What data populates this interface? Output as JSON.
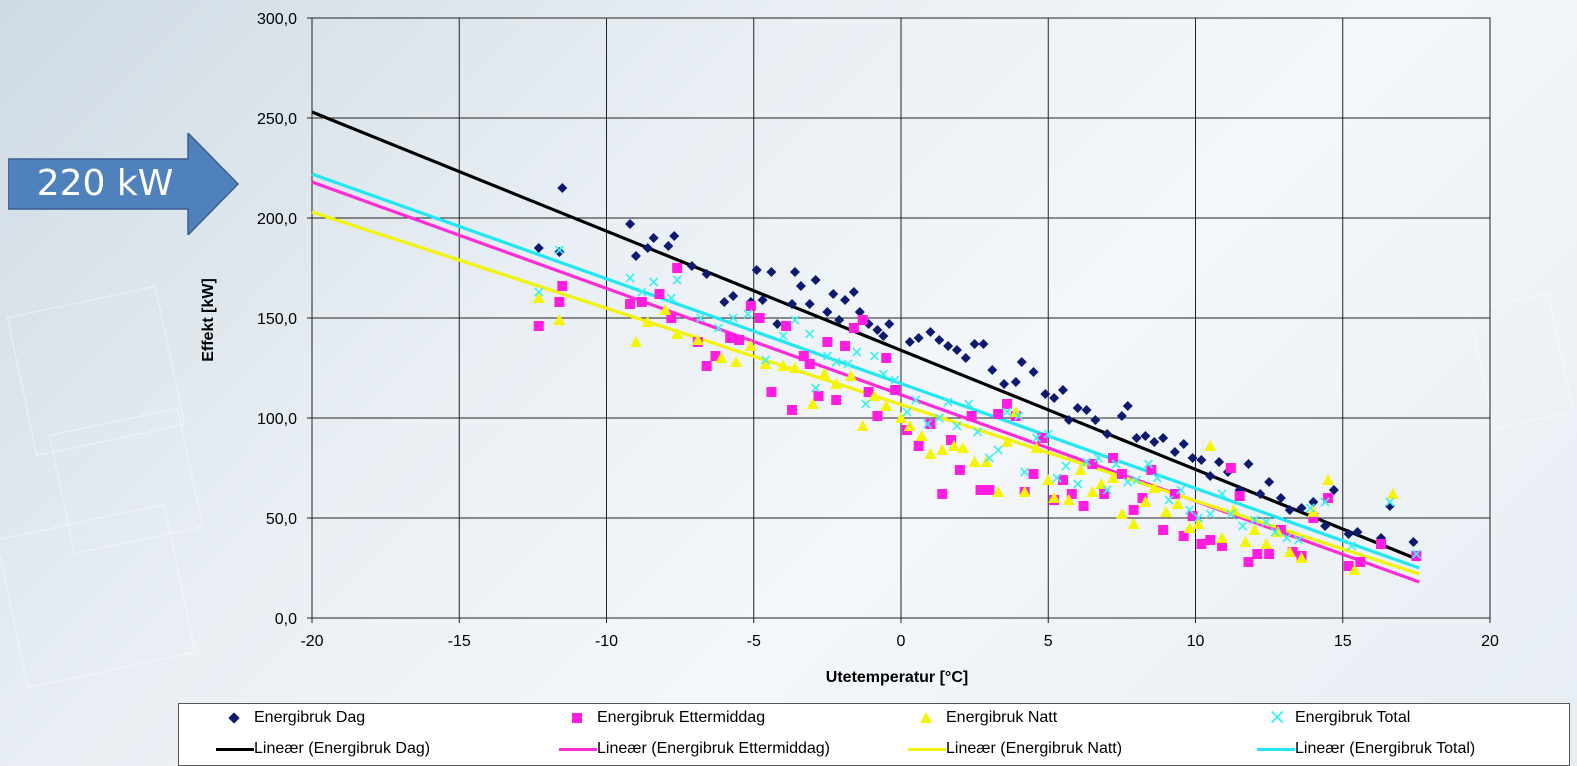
{
  "callout": {
    "text": "220 kW",
    "color": "#4f81bd"
  },
  "chart_data": {
    "type": "scatter",
    "title": "",
    "xlabel": "Utetemperatur [°C]",
    "ylabel": "Effekt [kW]",
    "xlim": [
      -20,
      20
    ],
    "ylim": [
      0,
      300
    ],
    "x_ticks": [
      "-20",
      "-15",
      "-10",
      "-5",
      "0",
      "5",
      "10",
      "15",
      "20"
    ],
    "y_ticks": [
      "0,0",
      "50,0",
      "100,0",
      "150,0",
      "200,0",
      "250,0",
      "300,0"
    ],
    "grid": true,
    "legend_position": "bottom",
    "series": [
      {
        "name": "Energibruk Dag",
        "marker": "diamond",
        "color": "#0d1a6e",
        "points": [
          [
            -12.3,
            185
          ],
          [
            -11.6,
            183
          ],
          [
            -11.5,
            215
          ],
          [
            -9.2,
            197
          ],
          [
            -9,
            181
          ],
          [
            -8.6,
            185
          ],
          [
            -8.4,
            190
          ],
          [
            -7.9,
            186
          ],
          [
            -7.7,
            191
          ],
          [
            -7.1,
            176
          ],
          [
            -6.6,
            172
          ],
          [
            -6,
            158
          ],
          [
            -5.7,
            161
          ],
          [
            -5.1,
            158
          ],
          [
            -4.9,
            174
          ],
          [
            -4.7,
            159
          ],
          [
            -4.4,
            173
          ],
          [
            -4.2,
            147
          ],
          [
            -3.7,
            157
          ],
          [
            -3.6,
            173
          ],
          [
            -3.4,
            166
          ],
          [
            -3.1,
            157
          ],
          [
            -2.9,
            169
          ],
          [
            -2.5,
            153
          ],
          [
            -2.3,
            162
          ],
          [
            -2.1,
            149
          ],
          [
            -1.9,
            159
          ],
          [
            -1.6,
            163
          ],
          [
            -1.4,
            153
          ],
          [
            -1.1,
            147
          ],
          [
            -0.8,
            144
          ],
          [
            -0.6,
            141
          ],
          [
            -0.4,
            147
          ],
          [
            0.3,
            138
          ],
          [
            0.6,
            140
          ],
          [
            1,
            143
          ],
          [
            1.3,
            139
          ],
          [
            1.6,
            136
          ],
          [
            1.9,
            134
          ],
          [
            2.2,
            130
          ],
          [
            2.5,
            137
          ],
          [
            2.8,
            137
          ],
          [
            3.1,
            124
          ],
          [
            3.5,
            117
          ],
          [
            3.9,
            118
          ],
          [
            4.1,
            128
          ],
          [
            4.5,
            123
          ],
          [
            4.9,
            112
          ],
          [
            5.2,
            110
          ],
          [
            5.5,
            114
          ],
          [
            5.7,
            99
          ],
          [
            6,
            105
          ],
          [
            6.3,
            104
          ],
          [
            6.6,
            99
          ],
          [
            7,
            92
          ],
          [
            7.5,
            101
          ],
          [
            7.7,
            106
          ],
          [
            8,
            90
          ],
          [
            8.3,
            91
          ],
          [
            8.6,
            88
          ],
          [
            8.9,
            90
          ],
          [
            9.3,
            83
          ],
          [
            9.6,
            87
          ],
          [
            9.9,
            80
          ],
          [
            10.2,
            79
          ],
          [
            10.5,
            71
          ],
          [
            10.8,
            78
          ],
          [
            11.1,
            73
          ],
          [
            11.5,
            64
          ],
          [
            11.8,
            77
          ],
          [
            12.2,
            62
          ],
          [
            12.5,
            68
          ],
          [
            12.9,
            60
          ],
          [
            13.2,
            54
          ],
          [
            13.6,
            55
          ],
          [
            14,
            58
          ],
          [
            14.4,
            46
          ],
          [
            14.7,
            64
          ],
          [
            15.2,
            42
          ],
          [
            15.5,
            43
          ],
          [
            16.3,
            40
          ],
          [
            16.6,
            56
          ],
          [
            17.4,
            38
          ]
        ]
      },
      {
        "name": "Energibruk Ettermiddag",
        "marker": "square",
        "color": "#ff1ee0",
        "points": [
          [
            -12.3,
            146
          ],
          [
            -11.6,
            158
          ],
          [
            -11.5,
            166
          ],
          [
            -9.2,
            157
          ],
          [
            -8.8,
            158
          ],
          [
            -8.2,
            162
          ],
          [
            -7.8,
            150
          ],
          [
            -7.6,
            175
          ],
          [
            -6.9,
            138
          ],
          [
            -6.6,
            126
          ],
          [
            -6.3,
            131
          ],
          [
            -5.8,
            140
          ],
          [
            -5.5,
            139
          ],
          [
            -5.1,
            156
          ],
          [
            -4.8,
            150
          ],
          [
            -4.4,
            113
          ],
          [
            -3.9,
            146
          ],
          [
            -3.7,
            104
          ],
          [
            -3.3,
            131
          ],
          [
            -3.1,
            127
          ],
          [
            -2.8,
            111
          ],
          [
            -2.5,
            138
          ],
          [
            -2.2,
            109
          ],
          [
            -1.9,
            136
          ],
          [
            -1.6,
            145
          ],
          [
            -1.3,
            149
          ],
          [
            -1.1,
            113
          ],
          [
            -0.8,
            101
          ],
          [
            -0.5,
            130
          ],
          [
            -0.2,
            114
          ],
          [
            0.2,
            94
          ],
          [
            0.6,
            86
          ],
          [
            1,
            97
          ],
          [
            1.4,
            62
          ],
          [
            1.7,
            89
          ],
          [
            2,
            74
          ],
          [
            2.4,
            101
          ],
          [
            2.7,
            64
          ],
          [
            3,
            64
          ],
          [
            3.3,
            102
          ],
          [
            3.6,
            107
          ],
          [
            3.9,
            101
          ],
          [
            4.2,
            63
          ],
          [
            4.5,
            72
          ],
          [
            4.8,
            90
          ],
          [
            5.2,
            59
          ],
          [
            5.5,
            69
          ],
          [
            5.8,
            62
          ],
          [
            6.2,
            56
          ],
          [
            6.5,
            77
          ],
          [
            6.9,
            62
          ],
          [
            7.2,
            80
          ],
          [
            7.5,
            72
          ],
          [
            7.9,
            54
          ],
          [
            8.2,
            60
          ],
          [
            8.5,
            74
          ],
          [
            8.9,
            44
          ],
          [
            9.3,
            62
          ],
          [
            9.6,
            41
          ],
          [
            9.9,
            51
          ],
          [
            10.2,
            37
          ],
          [
            10.5,
            39
          ],
          [
            10.9,
            36
          ],
          [
            11.2,
            75
          ],
          [
            11.5,
            61
          ],
          [
            11.8,
            28
          ],
          [
            12.1,
            32
          ],
          [
            12.5,
            32
          ],
          [
            12.9,
            44
          ],
          [
            13.3,
            33
          ],
          [
            13.6,
            31
          ],
          [
            14,
            50
          ],
          [
            14.5,
            60
          ],
          [
            15.2,
            26
          ],
          [
            15.6,
            28
          ],
          [
            16.3,
            37
          ],
          [
            17.5,
            31
          ]
        ]
      },
      {
        "name": "Energibruk Natt",
        "marker": "triangle",
        "color": "#f5f500",
        "points": [
          [
            -12.3,
            160
          ],
          [
            -11.6,
            149
          ],
          [
            -9,
            138
          ],
          [
            -8.6,
            148
          ],
          [
            -8,
            154
          ],
          [
            -7.6,
            142
          ],
          [
            -6.9,
            139
          ],
          [
            -6.1,
            130
          ],
          [
            -5.6,
            128
          ],
          [
            -5.1,
            136
          ],
          [
            -4.6,
            127
          ],
          [
            -4,
            126
          ],
          [
            -3.6,
            125
          ],
          [
            -3,
            107
          ],
          [
            -2.6,
            122
          ],
          [
            -2.2,
            117
          ],
          [
            -1.7,
            121
          ],
          [
            -1.3,
            96
          ],
          [
            -0.9,
            111
          ],
          [
            -0.5,
            106
          ],
          [
            0,
            100
          ],
          [
            0.3,
            96
          ],
          [
            0.7,
            91
          ],
          [
            1,
            82
          ],
          [
            1.4,
            84
          ],
          [
            1.8,
            86
          ],
          [
            2.1,
            85
          ],
          [
            2.5,
            78
          ],
          [
            2.9,
            78
          ],
          [
            3.3,
            63
          ],
          [
            3.6,
            88
          ],
          [
            3.9,
            103
          ],
          [
            4.2,
            63
          ],
          [
            4.6,
            85
          ],
          [
            5,
            69
          ],
          [
            5.2,
            60
          ],
          [
            5.7,
            59
          ],
          [
            6.1,
            74
          ],
          [
            6.5,
            63
          ],
          [
            6.8,
            67
          ],
          [
            7.2,
            70
          ],
          [
            7.5,
            52
          ],
          [
            7.9,
            47
          ],
          [
            8.3,
            58
          ],
          [
            8.6,
            65
          ],
          [
            9,
            53
          ],
          [
            9.4,
            57
          ],
          [
            9.8,
            45
          ],
          [
            10.1,
            47
          ],
          [
            10.5,
            86
          ],
          [
            10.9,
            40
          ],
          [
            11.3,
            54
          ],
          [
            11.7,
            38
          ],
          [
            12,
            44
          ],
          [
            12.4,
            37
          ],
          [
            12.8,
            43
          ],
          [
            13.2,
            33
          ],
          [
            13.6,
            30
          ],
          [
            14,
            53
          ],
          [
            14.5,
            69
          ],
          [
            15.4,
            24
          ],
          [
            16.7,
            62
          ]
        ]
      },
      {
        "name": "Energibruk Total",
        "marker": "x",
        "color": "#3ff0f0",
        "points": [
          [
            -12.3,
            163
          ],
          [
            -11.6,
            184
          ],
          [
            -9.2,
            170
          ],
          [
            -8.8,
            163
          ],
          [
            -8.4,
            168
          ],
          [
            -7.8,
            160
          ],
          [
            -7.6,
            169
          ],
          [
            -6.8,
            150
          ],
          [
            -6.2,
            145
          ],
          [
            -5.7,
            150
          ],
          [
            -5.2,
            152
          ],
          [
            -4.6,
            129
          ],
          [
            -4,
            141
          ],
          [
            -3.6,
            149
          ],
          [
            -3.1,
            142
          ],
          [
            -2.9,
            115
          ],
          [
            -2.5,
            131
          ],
          [
            -2.2,
            128
          ],
          [
            -1.8,
            127
          ],
          [
            -1.5,
            133
          ],
          [
            -1.2,
            107
          ],
          [
            -0.9,
            131
          ],
          [
            -0.6,
            122
          ],
          [
            -0.2,
            119
          ],
          [
            0.2,
            103
          ],
          [
            0.5,
            109
          ],
          [
            0.9,
            97
          ],
          [
            1.3,
            100
          ],
          [
            1.6,
            108
          ],
          [
            1.9,
            96
          ],
          [
            2.3,
            107
          ],
          [
            2.6,
            93
          ],
          [
            3,
            80
          ],
          [
            3.3,
            84
          ],
          [
            3.6,
            103
          ],
          [
            4,
            101
          ],
          [
            4.2,
            73
          ],
          [
            4.6,
            90
          ],
          [
            5,
            92
          ],
          [
            5.3,
            70
          ],
          [
            5.6,
            76
          ],
          [
            6,
            67
          ],
          [
            6.3,
            78
          ],
          [
            6.7,
            80
          ],
          [
            7,
            64
          ],
          [
            7.3,
            77
          ],
          [
            7.7,
            68
          ],
          [
            8,
            69
          ],
          [
            8.4,
            77
          ],
          [
            8.7,
            70
          ],
          [
            9.1,
            59
          ],
          [
            9.5,
            64
          ],
          [
            9.8,
            54
          ],
          [
            10.1,
            50
          ],
          [
            10.5,
            52
          ],
          [
            10.9,
            62
          ],
          [
            11.2,
            52
          ],
          [
            11.6,
            46
          ],
          [
            12,
            49
          ],
          [
            12.4,
            48
          ],
          [
            12.7,
            43
          ],
          [
            13.1,
            40
          ],
          [
            13.5,
            39
          ],
          [
            13.9,
            55
          ],
          [
            14.4,
            58
          ],
          [
            15.3,
            36
          ],
          [
            16.6,
            58
          ],
          [
            17.5,
            32
          ]
        ]
      }
    ],
    "trendlines": [
      {
        "name": "Lineær (Energibruk Dag)",
        "color": "#000000",
        "from": [
          -20,
          253
        ],
        "to": [
          17.6,
          29
        ]
      },
      {
        "name": "Lineær (Energibruk Ettermiddag)",
        "color": "#ff2bd6",
        "from": [
          -20,
          218
        ],
        "to": [
          17.6,
          18
        ]
      },
      {
        "name": "Lineær (Energibruk Natt)",
        "color": "#f2f20a",
        "from": [
          -20,
          203
        ],
        "to": [
          17.6,
          22
        ]
      },
      {
        "name": "Lineær (Energibruk Total)",
        "color": "#22e6f2",
        "from": [
          -20,
          222
        ],
        "to": [
          17.6,
          25
        ]
      }
    ]
  }
}
